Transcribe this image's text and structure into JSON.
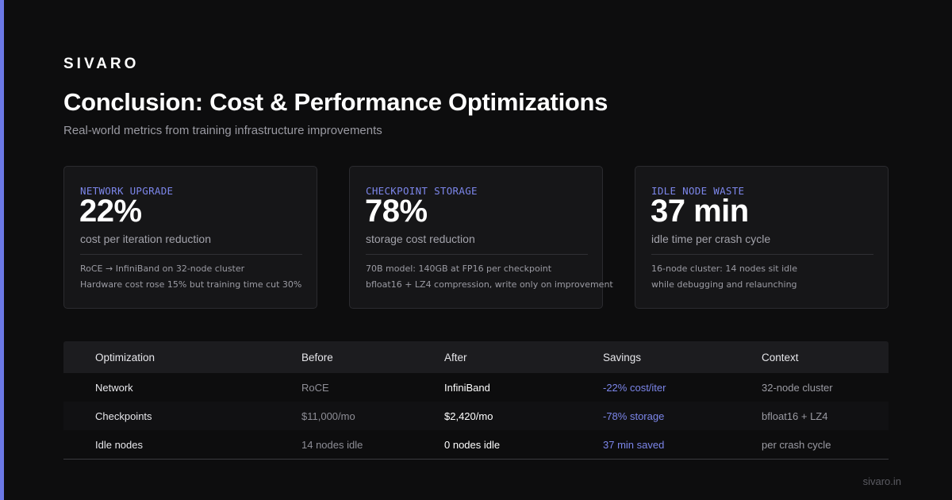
{
  "brand": "SIVARO",
  "title": "Conclusion: Cost & Performance Optimizations",
  "subtitle": "Real-world metrics from training infrastructure improvements",
  "colors": {
    "background": "#0d0d0e",
    "accent": "#6b78e6",
    "card_label": "#7c86ea",
    "savings": "#7c86ea"
  },
  "cards": [
    {
      "label": "NETWORK UPGRADE",
      "value": "22%",
      "caption": "cost per iteration reduction",
      "notes": [
        "RoCE → InfiniBand on 32-node cluster",
        "Hardware cost rose 15% but training time cut 30%"
      ]
    },
    {
      "label": "CHECKPOINT STORAGE",
      "value": "78%",
      "caption": "storage cost reduction",
      "notes": [
        "70B model: 140GB at FP16 per checkpoint",
        "bfloat16 + LZ4 compression, write only on improvement"
      ]
    },
    {
      "label": "IDLE NODE WASTE",
      "value": "37 min",
      "caption": "idle time per crash cycle",
      "notes": [
        "16-node cluster: 14 nodes sit idle",
        "while debugging and relaunching"
      ]
    }
  ],
  "table": {
    "headers": [
      "Optimization",
      "Before",
      "After",
      "Savings",
      "Context"
    ],
    "rows": [
      [
        "Network",
        "RoCE",
        "InfiniBand",
        "-22% cost/iter",
        "32-node cluster"
      ],
      [
        "Checkpoints",
        "$11,000/mo",
        "$2,420/mo",
        "-78% storage",
        "bfloat16 + LZ4"
      ],
      [
        "Idle nodes",
        "14 nodes idle",
        "0 nodes idle",
        "37 min saved",
        "per crash cycle"
      ]
    ]
  },
  "footer": "sivaro.in"
}
